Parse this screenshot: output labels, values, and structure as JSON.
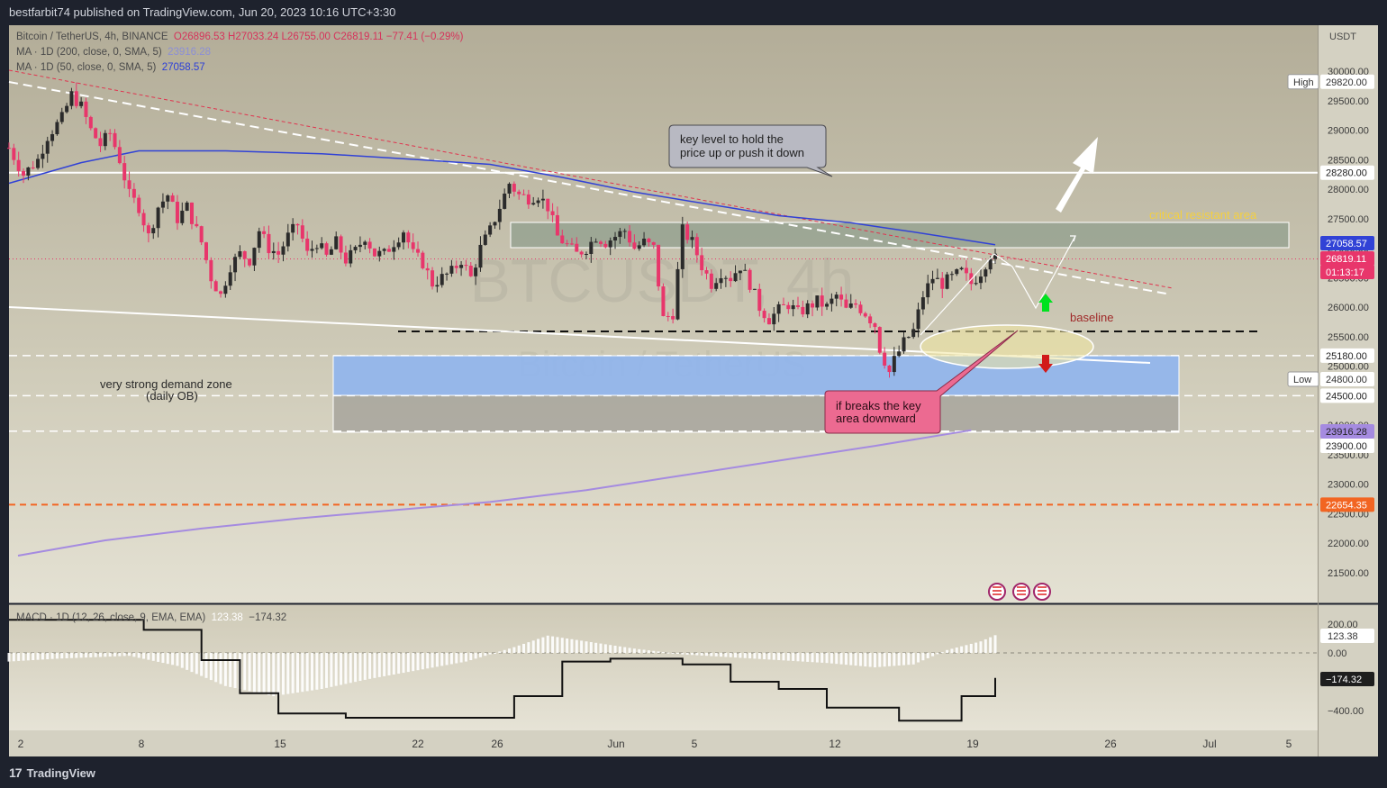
{
  "header": {
    "publisher": "bestfarbit74 published on TradingView.com, Jun 20, 2023 10:16 UTC+3:30"
  },
  "legend": {
    "symbol": "Bitcoin / TetherUS, 4h, BINANCE",
    "o": "O26896.53",
    "h": "H27033.24",
    "l": "L26755.00",
    "c": "C26819.11",
    "chg": "−77.41 (−0.29%)",
    "ma200": "MA · 1D (200, close, 0, SMA, 5)",
    "ma200_val": "23916.28",
    "ma50": "MA · 1D (50, close, 0, SMA, 5)",
    "ma50_val": "27058.57",
    "macd": "MACD · 1D (12, 26, close, 9, EMA, EMA)",
    "macd_hist": "123.38",
    "macd_line": "−174.32"
  },
  "watermark": {
    "symbol": "BTCUSDT, 4h",
    "name": "Bitcoin / TetherUS"
  },
  "price_axis": {
    "currency": "USDT",
    "ticks": [
      "30000.00",
      "29500.00",
      "29000.00",
      "28500.00",
      "28000.00",
      "27500.00",
      "27000.00",
      "26500.00",
      "26000.00",
      "25500.00",
      "25000.00",
      "24500.00",
      "24000.00",
      "23500.00",
      "23000.00",
      "22500.00",
      "22000.00",
      "21500.00"
    ],
    "badges": [
      {
        "text": "29820.00",
        "kind": "hl",
        "tag": "High"
      },
      {
        "text": "28280.00",
        "kind": "line"
      },
      {
        "text": "27058.57",
        "kind": "ma50"
      },
      {
        "text": "26819.11",
        "kind": "price"
      },
      {
        "text": "01:13:17",
        "kind": "price"
      },
      {
        "text": "25180.00",
        "kind": "line"
      },
      {
        "text": "24800.00",
        "kind": "hl",
        "tag": "Low"
      },
      {
        "text": "24500.00",
        "kind": "line"
      },
      {
        "text": "23916.28",
        "kind": "ma200"
      },
      {
        "text": "23900.00",
        "kind": "line"
      },
      {
        "text": "22654.35",
        "kind": "orange"
      }
    ]
  },
  "macd_axis": {
    "ticks": [
      "200.00",
      "0.00",
      "−400.00"
    ],
    "hist_badge": "123.38",
    "line_badge": "−174.32"
  },
  "time_axis": [
    "2",
    "8",
    "15",
    "22",
    "26",
    "Jun",
    "5",
    "12",
    "19",
    "26",
    "Jul",
    "5"
  ],
  "annotations": {
    "key_level": "key level to hold the price up or push it down",
    "critical": "critical resistant area",
    "baseline": "baseline",
    "demand": "very strong demand zone (daily OB)",
    "breaks": "if breaks the key area downward"
  },
  "footer": {
    "brand": "TradingView"
  },
  "colors": {
    "bull": "#2b2b2b",
    "bear": "#e8366b",
    "ma50": "#3142d6",
    "ma200": "#a58be0",
    "orange": "#f26522",
    "demand": "#8fb5ee"
  },
  "chart_data": {
    "type": "candlestick",
    "title": "Bitcoin / TetherUS, 4h, BINANCE",
    "x_axis": {
      "ticks": [
        "2",
        "8",
        "15",
        "22",
        "26",
        "Jun",
        "5",
        "12",
        "19",
        "26",
        "Jul",
        "5"
      ]
    },
    "y_axis": {
      "unit": "USDT",
      "range": [
        21000,
        30500
      ]
    },
    "ohlc_last": {
      "open": 26896.53,
      "high": 27033.24,
      "low": 26755.0,
      "close": 26819.11,
      "change": -77.41,
      "change_pct": -0.29
    },
    "levels": {
      "high": 29820.0,
      "resistance_line": 28280.0,
      "ma50": 27058.57,
      "last_price": 26819.11,
      "zone_top": 25180.0,
      "low": 24800.0,
      "zone_mid": 24500.0,
      "ma200": 23916.28,
      "zone_bottom": 23900.0,
      "orange_line": 22654.35
    },
    "close_path": [
      {
        "x": 0,
        "y": 28700
      },
      {
        "x": 3,
        "y": 28250
      },
      {
        "x": 6,
        "y": 28500
      },
      {
        "x": 8,
        "y": 28900
      },
      {
        "x": 11,
        "y": 29200
      },
      {
        "x": 13,
        "y": 29600
      },
      {
        "x": 15,
        "y": 29400
      },
      {
        "x": 17,
        "y": 29000
      },
      {
        "x": 19,
        "y": 28750
      },
      {
        "x": 21,
        "y": 28950
      },
      {
        "x": 23,
        "y": 28500
      },
      {
        "x": 25,
        "y": 27900
      },
      {
        "x": 27,
        "y": 27700
      },
      {
        "x": 29,
        "y": 27200
      },
      {
        "x": 31,
        "y": 27700
      },
      {
        "x": 33,
        "y": 27900
      },
      {
        "x": 35,
        "y": 27500
      },
      {
        "x": 37,
        "y": 27700
      },
      {
        "x": 40,
        "y": 27100
      },
      {
        "x": 42,
        "y": 26500
      },
      {
        "x": 44,
        "y": 26200
      },
      {
        "x": 46,
        "y": 26700
      },
      {
        "x": 48,
        "y": 26900
      },
      {
        "x": 50,
        "y": 26800
      },
      {
        "x": 52,
        "y": 27300
      },
      {
        "x": 54,
        "y": 27000
      },
      {
        "x": 56,
        "y": 26900
      },
      {
        "x": 58,
        "y": 27200
      },
      {
        "x": 60,
        "y": 27400
      },
      {
        "x": 62,
        "y": 26900
      },
      {
        "x": 64,
        "y": 27100
      },
      {
        "x": 66,
        "y": 26850
      },
      {
        "x": 68,
        "y": 27100
      },
      {
        "x": 70,
        "y": 26800
      },
      {
        "x": 72,
        "y": 26950
      },
      {
        "x": 74,
        "y": 27200
      },
      {
        "x": 76,
        "y": 26900
      },
      {
        "x": 78,
        "y": 26900
      },
      {
        "x": 80,
        "y": 27100
      },
      {
        "x": 82,
        "y": 27300
      },
      {
        "x": 84,
        "y": 26900
      },
      {
        "x": 86,
        "y": 26750
      },
      {
        "x": 88,
        "y": 26400
      },
      {
        "x": 90,
        "y": 26500
      },
      {
        "x": 92,
        "y": 26600
      },
      {
        "x": 94,
        "y": 26800
      },
      {
        "x": 96,
        "y": 26500
      },
      {
        "x": 98,
        "y": 27000
      },
      {
        "x": 100,
        "y": 27300
      },
      {
        "x": 102,
        "y": 27700
      },
      {
        "x": 104,
        "y": 28100
      },
      {
        "x": 106,
        "y": 27900
      },
      {
        "x": 108,
        "y": 27850
      },
      {
        "x": 110,
        "y": 27900
      },
      {
        "x": 112,
        "y": 27700
      },
      {
        "x": 114,
        "y": 27200
      },
      {
        "x": 116,
        "y": 27050
      },
      {
        "x": 118,
        "y": 26900
      },
      {
        "x": 120,
        "y": 27000
      },
      {
        "x": 122,
        "y": 27200
      },
      {
        "x": 124,
        "y": 27100
      },
      {
        "x": 126,
        "y": 27200
      },
      {
        "x": 128,
        "y": 27300
      },
      {
        "x": 130,
        "y": 27000
      },
      {
        "x": 132,
        "y": 27100
      },
      {
        "x": 134,
        "y": 27000
      },
      {
        "x": 136,
        "y": 25800
      },
      {
        "x": 138,
        "y": 25900
      },
      {
        "x": 140,
        "y": 27300
      },
      {
        "x": 142,
        "y": 27100
      },
      {
        "x": 144,
        "y": 26700
      },
      {
        "x": 146,
        "y": 26400
      },
      {
        "x": 148,
        "y": 26600
      },
      {
        "x": 150,
        "y": 26500
      },
      {
        "x": 152,
        "y": 26700
      },
      {
        "x": 154,
        "y": 26400
      },
      {
        "x": 156,
        "y": 26000
      },
      {
        "x": 158,
        "y": 25800
      },
      {
        "x": 160,
        "y": 25950
      },
      {
        "x": 162,
        "y": 26050
      },
      {
        "x": 164,
        "y": 25900
      },
      {
        "x": 166,
        "y": 26000
      },
      {
        "x": 168,
        "y": 26100
      },
      {
        "x": 170,
        "y": 26000
      },
      {
        "x": 172,
        "y": 26200
      },
      {
        "x": 174,
        "y": 25950
      },
      {
        "x": 176,
        "y": 26050
      },
      {
        "x": 178,
        "y": 25900
      },
      {
        "x": 180,
        "y": 25700
      },
      {
        "x": 181,
        "y": 25300
      },
      {
        "x": 182,
        "y": 25100
      },
      {
        "x": 183,
        "y": 24900
      },
      {
        "x": 184,
        "y": 25100
      },
      {
        "x": 186,
        "y": 25400
      },
      {
        "x": 188,
        "y": 25600
      },
      {
        "x": 190,
        "y": 26200
      },
      {
        "x": 192,
        "y": 26500
      },
      {
        "x": 194,
        "y": 26400
      },
      {
        "x": 196,
        "y": 26500
      },
      {
        "x": 198,
        "y": 26600
      },
      {
        "x": 200,
        "y": 26400
      },
      {
        "x": 202,
        "y": 26600
      },
      {
        "x": 204,
        "y": 26900
      },
      {
        "x": 205,
        "y": 26819
      }
    ],
    "ma50_path": [
      {
        "x": 0,
        "y": 28100
      },
      {
        "x": 15,
        "y": 28450
      },
      {
        "x": 27,
        "y": 28650
      },
      {
        "x": 45,
        "y": 28650
      },
      {
        "x": 65,
        "y": 28600
      },
      {
        "x": 85,
        "y": 28500
      },
      {
        "x": 100,
        "y": 28420
      },
      {
        "x": 115,
        "y": 28200
      },
      {
        "x": 130,
        "y": 27950
      },
      {
        "x": 145,
        "y": 27750
      },
      {
        "x": 160,
        "y": 27550
      },
      {
        "x": 175,
        "y": 27430
      },
      {
        "x": 190,
        "y": 27250
      },
      {
        "x": 205,
        "y": 27058
      }
    ],
    "ma200_path": [
      {
        "x": 0,
        "y": 21800
      },
      {
        "x": 20,
        "y": 22050
      },
      {
        "x": 40,
        "y": 22250
      },
      {
        "x": 60,
        "y": 22420
      },
      {
        "x": 80,
        "y": 22560
      },
      {
        "x": 100,
        "y": 22700
      },
      {
        "x": 120,
        "y": 22900
      },
      {
        "x": 140,
        "y": 23150
      },
      {
        "x": 160,
        "y": 23400
      },
      {
        "x": 180,
        "y": 23650
      },
      {
        "x": 200,
        "y": 23916
      }
    ],
    "macd_hist": [
      {
        "x": 0,
        "y": -60
      },
      {
        "x": 10,
        "y": -40
      },
      {
        "x": 25,
        "y": -20
      },
      {
        "x": 35,
        "y": -90
      },
      {
        "x": 45,
        "y": -230
      },
      {
        "x": 55,
        "y": -300
      },
      {
        "x": 65,
        "y": -250
      },
      {
        "x": 75,
        "y": -180
      },
      {
        "x": 85,
        "y": -120
      },
      {
        "x": 95,
        "y": -60
      },
      {
        "x": 105,
        "y": 40
      },
      {
        "x": 112,
        "y": 120
      },
      {
        "x": 120,
        "y": 80
      },
      {
        "x": 130,
        "y": 30
      },
      {
        "x": 140,
        "y": -10
      },
      {
        "x": 150,
        "y": -30
      },
      {
        "x": 160,
        "y": -50
      },
      {
        "x": 170,
        "y": -70
      },
      {
        "x": 180,
        "y": -100
      },
      {
        "x": 188,
        "y": -80
      },
      {
        "x": 195,
        "y": 20
      },
      {
        "x": 202,
        "y": 80
      },
      {
        "x": 205,
        "y": 123
      }
    ],
    "macd_line": [
      {
        "x": 0,
        "y": 230
      },
      {
        "x": 15,
        "y": 230
      },
      {
        "x": 28,
        "y": 160
      },
      {
        "x": 40,
        "y": -50
      },
      {
        "x": 48,
        "y": -280
      },
      {
        "x": 56,
        "y": -420
      },
      {
        "x": 70,
        "y": -450
      },
      {
        "x": 90,
        "y": -450
      },
      {
        "x": 105,
        "y": -300
      },
      {
        "x": 115,
        "y": -60
      },
      {
        "x": 125,
        "y": -40
      },
      {
        "x": 140,
        "y": -80
      },
      {
        "x": 150,
        "y": -200
      },
      {
        "x": 160,
        "y": -250
      },
      {
        "x": 170,
        "y": -380
      },
      {
        "x": 185,
        "y": -470
      },
      {
        "x": 190,
        "y": -470
      },
      {
        "x": 198,
        "y": -300
      },
      {
        "x": 205,
        "y": -174
      }
    ]
  }
}
